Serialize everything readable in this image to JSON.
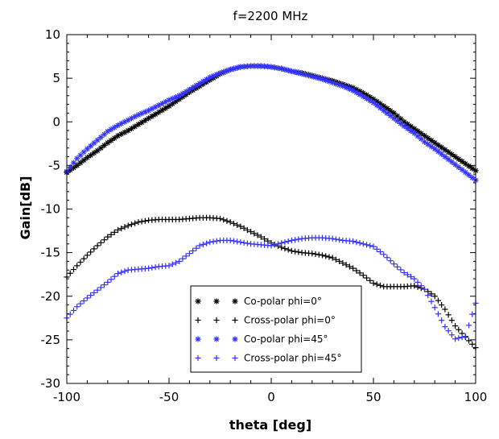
{
  "chart_data": {
    "type": "scatter",
    "title": "f=2200 MHz",
    "xlabel": "theta [deg]",
    "ylabel": "Gain[dB]",
    "xlim": [
      -100,
      100
    ],
    "ylim": [
      -30,
      10
    ],
    "x_ticks": [
      -100,
      -50,
      0,
      50,
      100
    ],
    "y_ticks": [
      10,
      5,
      0,
      -5,
      -10,
      -15,
      -20,
      -25,
      -30
    ],
    "x_tick_labels": [
      "-100",
      "-50",
      "0",
      "50",
      "100"
    ],
    "y_tick_labels": [
      "10",
      "5",
      "0",
      "-5",
      "-10",
      "-15",
      "-20",
      "-25",
      "-30"
    ],
    "grid": false,
    "legend_position": "bottom-center",
    "series": [
      {
        "name": "Co-polar phi=0°",
        "marker": "asterisk",
        "color": "#000000",
        "x": [
          -100,
          -95,
          -90,
          -85,
          -80,
          -75,
          -70,
          -65,
          -60,
          -55,
          -50,
          -45,
          -40,
          -35,
          -30,
          -25,
          -20,
          -15,
          -10,
          -5,
          0,
          5,
          10,
          15,
          20,
          25,
          30,
          35,
          40,
          45,
          50,
          55,
          60,
          65,
          70,
          75,
          80,
          85,
          90,
          95,
          100
        ],
        "y": [
          -5.8,
          -5.0,
          -4.1,
          -3.3,
          -2.4,
          -1.6,
          -1.0,
          -0.3,
          0.4,
          1.1,
          1.8,
          2.6,
          3.4,
          4.1,
          4.8,
          5.5,
          6.0,
          6.3,
          6.4,
          6.4,
          6.3,
          6.1,
          5.8,
          5.6,
          5.3,
          5.0,
          4.7,
          4.3,
          3.9,
          3.3,
          2.6,
          1.8,
          1.0,
          0.0,
          -0.8,
          -1.6,
          -2.4,
          -3.2,
          -4.0,
          -4.8,
          -5.6
        ]
      },
      {
        "name": "Cross-polar phi=0°",
        "marker": "plus",
        "color": "#000000",
        "x": [
          -100,
          -95,
          -90,
          -85,
          -80,
          -75,
          -70,
          -65,
          -60,
          -55,
          -50,
          -45,
          -40,
          -35,
          -30,
          -25,
          -20,
          -15,
          -10,
          -5,
          0,
          5,
          10,
          15,
          20,
          25,
          30,
          35,
          40,
          45,
          50,
          55,
          60,
          65,
          70,
          75,
          80,
          85,
          90,
          95,
          100
        ],
        "y": [
          -17.8,
          -16.5,
          -15.3,
          -14.2,
          -13.2,
          -12.4,
          -11.9,
          -11.5,
          -11.3,
          -11.2,
          -11.2,
          -11.2,
          -11.1,
          -11.0,
          -11.0,
          -11.1,
          -11.5,
          -12.0,
          -12.6,
          -13.2,
          -13.9,
          -14.4,
          -14.8,
          -15.0,
          -15.1,
          -15.3,
          -15.6,
          -16.2,
          -16.8,
          -17.6,
          -18.5,
          -18.9,
          -18.9,
          -18.9,
          -18.8,
          -19.2,
          -20.0,
          -21.5,
          -23.4,
          -24.7,
          -25.9
        ]
      },
      {
        "name": "Co-polar phi=45°",
        "marker": "asterisk",
        "color": "#3333ff",
        "x": [
          -100,
          -95,
          -90,
          -85,
          -80,
          -75,
          -70,
          -65,
          -60,
          -55,
          -50,
          -45,
          -40,
          -35,
          -30,
          -25,
          -20,
          -15,
          -10,
          -5,
          0,
          5,
          10,
          15,
          20,
          25,
          30,
          35,
          40,
          45,
          50,
          55,
          60,
          65,
          70,
          75,
          80,
          85,
          90,
          95,
          100
        ],
        "y": [
          -5.7,
          -4.2,
          -3.1,
          -2.1,
          -1.1,
          -0.4,
          0.2,
          0.8,
          1.3,
          1.9,
          2.5,
          3.0,
          3.7,
          4.4,
          5.1,
          5.6,
          6.0,
          6.3,
          6.4,
          6.4,
          6.3,
          6.1,
          5.8,
          5.5,
          5.2,
          4.9,
          4.5,
          4.1,
          3.6,
          2.9,
          2.2,
          1.3,
          0.4,
          -0.5,
          -1.3,
          -2.3,
          -3.1,
          -4.0,
          -4.9,
          -5.8,
          -6.7
        ]
      },
      {
        "name": "Cross-polar phi=45°",
        "marker": "plus",
        "color": "#3333ff",
        "x": [
          -100,
          -95,
          -90,
          -85,
          -80,
          -75,
          -70,
          -65,
          -60,
          -55,
          -50,
          -45,
          -40,
          -35,
          -30,
          -25,
          -20,
          -15,
          -10,
          -5,
          0,
          5,
          10,
          15,
          20,
          25,
          30,
          35,
          40,
          45,
          50,
          55,
          60,
          65,
          70,
          75,
          80,
          85,
          90,
          95,
          100
        ],
        "y": [
          -22.5,
          -21.2,
          -20.2,
          -19.3,
          -18.4,
          -17.4,
          -17.0,
          -16.9,
          -16.8,
          -16.6,
          -16.5,
          -16.0,
          -15.1,
          -14.2,
          -13.8,
          -13.6,
          -13.6,
          -13.8,
          -14.0,
          -14.1,
          -14.2,
          -13.9,
          -13.6,
          -13.4,
          -13.3,
          -13.3,
          -13.4,
          -13.6,
          -13.7,
          -14.0,
          -14.3,
          -15.2,
          -16.3,
          -17.3,
          -18.0,
          -19.2,
          -21.3,
          -23.5,
          -24.9,
          -24.6,
          -20.8
        ]
      }
    ]
  }
}
